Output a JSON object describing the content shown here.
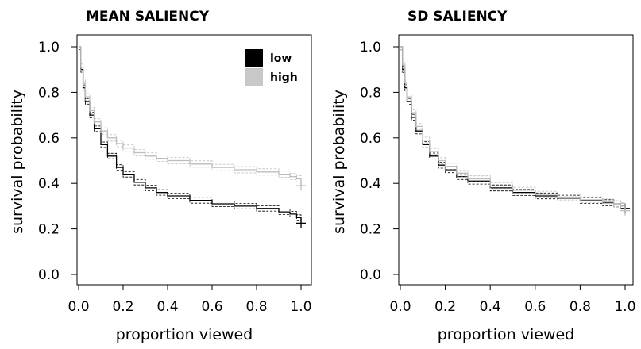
{
  "chart_data": [
    {
      "type": "line",
      "title": "MEAN SALIENCY",
      "xlabel": "proportion viewed",
      "ylabel": "survival probability",
      "xlim": [
        0,
        1
      ],
      "ylim": [
        0,
        1
      ],
      "xticks": [
        "0.0",
        "0.2",
        "0.4",
        "0.6",
        "0.8",
        "1.0"
      ],
      "yticks": [
        "0.0",
        "0.2",
        "0.4",
        "0.6",
        "0.8",
        "1.0"
      ],
      "legend": {
        "placement": "top-right",
        "entries": [
          {
            "label": "low",
            "color": "#000000"
          },
          {
            "label": "high",
            "color": "#bdbdbd"
          }
        ]
      },
      "series": [
        {
          "name": "low",
          "color": "#000000",
          "x": [
            0,
            0.01,
            0.02,
            0.03,
            0.05,
            0.07,
            0.1,
            0.13,
            0.17,
            0.2,
            0.25,
            0.3,
            0.35,
            0.4,
            0.5,
            0.6,
            0.7,
            0.8,
            0.9,
            0.95,
            0.98,
            1.0
          ],
          "y": [
            1.0,
            0.9,
            0.82,
            0.76,
            0.7,
            0.64,
            0.57,
            0.52,
            0.47,
            0.44,
            0.405,
            0.38,
            0.36,
            0.345,
            0.325,
            0.31,
            0.3,
            0.29,
            0.275,
            0.265,
            0.25,
            0.225
          ],
          "ci_offset": 0.012
        },
        {
          "name": "high",
          "color": "#bdbdbd",
          "x": [
            0,
            0.01,
            0.02,
            0.03,
            0.05,
            0.07,
            0.1,
            0.13,
            0.17,
            0.2,
            0.25,
            0.3,
            0.35,
            0.4,
            0.5,
            0.6,
            0.7,
            0.8,
            0.9,
            0.95,
            0.98,
            1.0
          ],
          "y": [
            1.0,
            0.91,
            0.84,
            0.78,
            0.72,
            0.67,
            0.63,
            0.6,
            0.575,
            0.555,
            0.535,
            0.52,
            0.51,
            0.5,
            0.485,
            0.47,
            0.46,
            0.45,
            0.44,
            0.43,
            0.42,
            0.39
          ],
          "ci_offset": 0.014
        }
      ]
    },
    {
      "type": "line",
      "title": "SD SALIENCY",
      "xlabel": "proportion viewed",
      "ylabel": "survival probability",
      "xlim": [
        0,
        1
      ],
      "ylim": [
        0,
        1
      ],
      "xticks": [
        "0.0",
        "0.2",
        "0.4",
        "0.6",
        "0.8",
        "1.0"
      ],
      "yticks": [
        "0.0",
        "0.2",
        "0.4",
        "0.6",
        "0.8",
        "1.0"
      ],
      "series": [
        {
          "name": "low",
          "color": "#000000",
          "x": [
            0,
            0.01,
            0.02,
            0.03,
            0.05,
            0.07,
            0.1,
            0.13,
            0.17,
            0.2,
            0.25,
            0.3,
            0.4,
            0.5,
            0.6,
            0.7,
            0.8,
            0.9,
            0.95,
            0.98,
            1.0
          ],
          "y": [
            1.0,
            0.9,
            0.82,
            0.76,
            0.69,
            0.63,
            0.57,
            0.52,
            0.48,
            0.46,
            0.43,
            0.41,
            0.38,
            0.36,
            0.345,
            0.335,
            0.325,
            0.315,
            0.31,
            0.3,
            0.29
          ],
          "ci_offset": 0.013
        },
        {
          "name": "high",
          "color": "#bdbdbd",
          "x": [
            0,
            0.01,
            0.02,
            0.03,
            0.05,
            0.07,
            0.1,
            0.13,
            0.17,
            0.2,
            0.25,
            0.3,
            0.4,
            0.5,
            0.6,
            0.7,
            0.8,
            0.9,
            0.95,
            0.98,
            1.0
          ],
          "y": [
            1.0,
            0.92,
            0.84,
            0.78,
            0.71,
            0.65,
            0.59,
            0.54,
            0.5,
            0.475,
            0.445,
            0.42,
            0.39,
            0.37,
            0.352,
            0.34,
            0.328,
            0.318,
            0.31,
            0.3,
            0.28
          ],
          "ci_offset": 0.013
        }
      ]
    }
  ]
}
